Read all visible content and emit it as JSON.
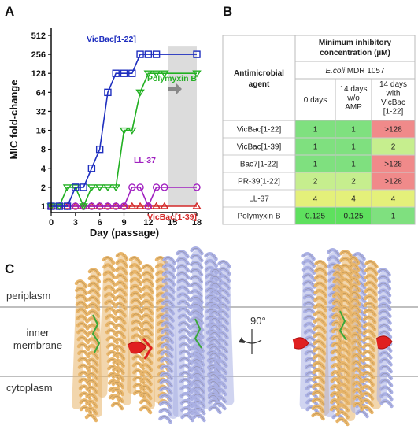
{
  "panels": {
    "a": "A",
    "b": "B",
    "c": "C"
  },
  "colors": {
    "vicbac1_22": "#1f2fbf",
    "polymyxin": "#22b022",
    "ll37": "#a020c0",
    "vicbac1_39": "#d42a2a",
    "cell_green": "#7fe07f",
    "cell_lightgreen": "#c6ee8e",
    "cell_red": "#f08a8a",
    "cell_brightgreen": "#5ee05e",
    "helix_orange": "#e8b56a",
    "helix_blue": "#aab0e4"
  },
  "chart_data": {
    "type": "line",
    "xlabel": "Day (passage)",
    "ylabel": "MIC fold-change",
    "xlim": [
      0,
      18
    ],
    "xticks": [
      0,
      3,
      6,
      9,
      12,
      15,
      18
    ],
    "yscale": "log2",
    "yticks": [
      "1",
      "2",
      "4",
      "8",
      "16",
      "32",
      "64",
      "128",
      "256",
      "512"
    ],
    "ylim": [
      1,
      512
    ],
    "shaded_region": [
      14.5,
      18
    ],
    "series": [
      {
        "name": "VicBac[1-22]",
        "marker": "square",
        "x": [
          0,
          1,
          2,
          3,
          4,
          5,
          6,
          7,
          8,
          9,
          10,
          11,
          12,
          13,
          18
        ],
        "y": [
          1,
          1,
          1,
          2,
          2,
          4,
          8,
          64,
          128,
          128,
          128,
          256,
          256,
          256,
          256
        ]
      },
      {
        "name": "Polymyxin B",
        "marker": "triangle-down",
        "x": [
          0,
          1,
          2,
          3,
          4,
          5,
          6,
          7,
          8,
          9,
          10,
          11,
          12,
          13,
          14,
          18
        ],
        "y": [
          1,
          1,
          2,
          2,
          1,
          2,
          2,
          2,
          2,
          16,
          16,
          64,
          128,
          128,
          128,
          128
        ]
      },
      {
        "name": "LL-37",
        "marker": "circle",
        "x": [
          0,
          1,
          2,
          3,
          4,
          5,
          6,
          7,
          8,
          9,
          10,
          11,
          12,
          13,
          14,
          18
        ],
        "y": [
          1,
          1,
          1,
          1,
          1,
          1,
          1,
          1,
          1,
          1,
          2,
          2,
          1,
          2,
          2,
          2
        ]
      },
      {
        "name": "VicBac[1-39]",
        "marker": "triangle-up",
        "x": [
          0,
          1,
          2,
          3,
          4,
          5,
          6,
          7,
          8,
          9,
          10,
          11,
          12,
          13,
          14,
          18
        ],
        "y": [
          1,
          1,
          1,
          1,
          1,
          1,
          1,
          1,
          1,
          1,
          1,
          1,
          1,
          1,
          1,
          1
        ]
      }
    ]
  },
  "table": {
    "row_header": "Antimicrobial agent",
    "top_header": "Minimum inhibitory concentration (µM)",
    "strain_italic": "E.coli",
    "strain_rest": " MDR 1057",
    "columns": [
      "0 days",
      "14 days w/o AMP",
      "14 days with VicBac [1-22]"
    ],
    "rows": [
      {
        "agent": "VicBac[1-22]",
        "values": [
          "1",
          "1",
          ">128"
        ]
      },
      {
        "agent": "VicBac[1-39]",
        "values": [
          "1",
          "1",
          "2"
        ]
      },
      {
        "agent": "Bac7[1-22]",
        "values": [
          "1",
          "1",
          ">128"
        ]
      },
      {
        "agent": "PR-39[1-22]",
        "values": [
          "2",
          "2",
          ">128"
        ]
      },
      {
        "agent": "LL-37",
        "values": [
          "4",
          "4",
          "4"
        ]
      },
      {
        "agent": "Polymyxin B",
        "values": [
          "0.125",
          "0.125",
          "1"
        ]
      }
    ]
  },
  "structure": {
    "periplasm": "periplasm",
    "membrane_line1": "inner",
    "membrane_line2": "membrane",
    "cytoplasm": "cytoplasm",
    "rotation": "90°"
  }
}
